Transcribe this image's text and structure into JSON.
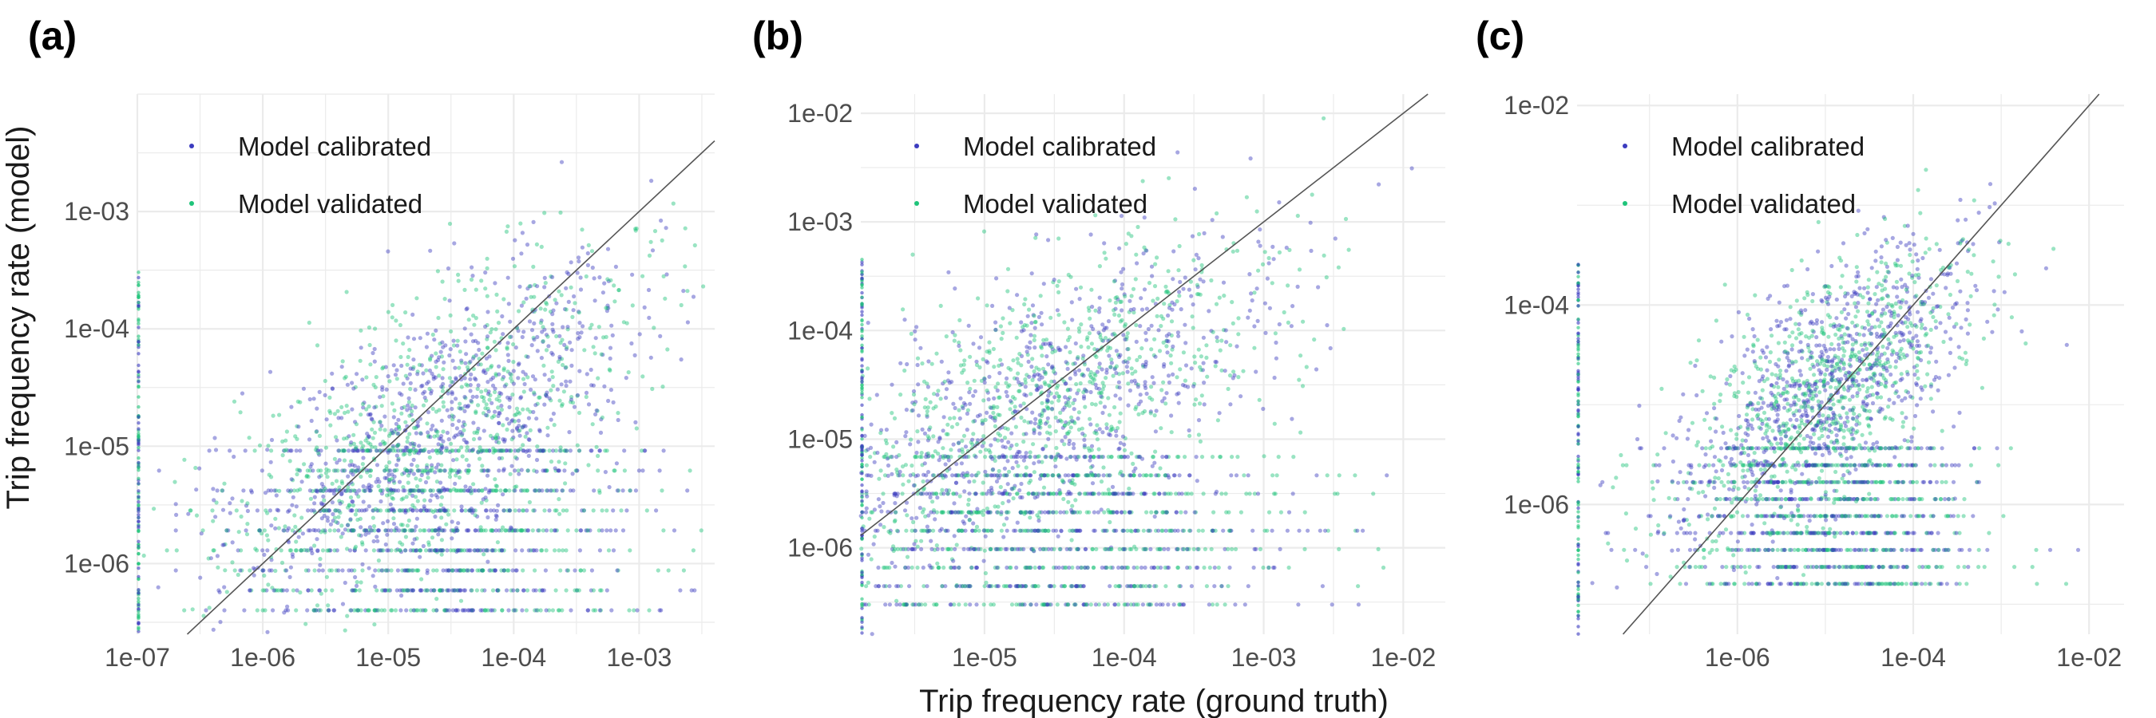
{
  "figure": {
    "ylabel": "Trip frequency rate (model)",
    "xlabel": "Trip frequency rate (ground truth)"
  },
  "colors": {
    "calibrated": "#3b3bbf",
    "validated": "#1fc47a",
    "grid": "#ebebeb",
    "identity_line": "#555555"
  },
  "chart_data": [
    {
      "type": "scatter",
      "panel_label": "(a)",
      "scale": "log-log",
      "x_range": [
        1e-07,
        0.004
      ],
      "y_range": [
        2.5e-07,
        0.01
      ],
      "x_ticks": [
        "1e-07",
        "1e-06",
        "1e-05",
        "1e-04",
        "1e-03"
      ],
      "x_tick_values": [
        1e-07,
        1e-06,
        1e-05,
        0.0001,
        0.001
      ],
      "y_ticks": [
        "1e-06",
        "1e-05",
        "1e-04",
        "1e-03"
      ],
      "y_tick_values": [
        1e-06,
        1e-05,
        0.0001,
        0.001
      ],
      "identity_line": true,
      "grid": true,
      "legend": {
        "position": "top-left",
        "entries": [
          "Model calibrated",
          "Model validated"
        ]
      },
      "series": [
        {
          "name": "Model calibrated",
          "color": "#3b3bbf"
        },
        {
          "name": "Model validated",
          "color": "#1fc47a"
        }
      ],
      "cloud": {
        "x_center": 2.5e-05,
        "y_center": 1.5e-05,
        "y_floor": 4e-07,
        "y_max": 0.005
      }
    },
    {
      "type": "scatter",
      "panel_label": "(b)",
      "scale": "log-log",
      "x_range": [
        1.3e-06,
        0.02
      ],
      "y_range": [
        1.6e-07,
        0.015
      ],
      "x_ticks": [
        "1e-05",
        "1e-04",
        "1e-03",
        "1e-02"
      ],
      "x_tick_values": [
        1e-05,
        0.0001,
        0.001,
        0.01
      ],
      "y_ticks": [
        "1e-06",
        "1e-05",
        "1e-04",
        "1e-03",
        "1e-02"
      ],
      "y_tick_values": [
        1e-06,
        1e-05,
        0.0001,
        0.001,
        0.01
      ],
      "identity_line": true,
      "grid": true,
      "legend": {
        "position": "top-left",
        "entries": [
          "Model calibrated",
          "Model validated"
        ]
      },
      "series": [
        {
          "name": "Model calibrated",
          "color": "#3b3bbf"
        },
        {
          "name": "Model validated",
          "color": "#1fc47a"
        }
      ],
      "cloud": {
        "x_center": 3e-05,
        "y_center": 2.5e-05,
        "y_floor": 3e-07,
        "y_max": 0.01
      }
    },
    {
      "type": "scatter",
      "panel_label": "(c)",
      "scale": "log-log",
      "x_range": [
        1.5e-08,
        0.025
      ],
      "y_range": [
        5e-08,
        0.013
      ],
      "x_ticks": [
        "1e-06",
        "1e-04",
        "1e-02"
      ],
      "x_tick_values": [
        1e-06,
        0.0001,
        0.01
      ],
      "y_ticks": [
        "1e-06",
        "1e-04",
        "1e-02"
      ],
      "y_tick_values": [
        1e-06,
        0.0001,
        0.01
      ],
      "identity_line": true,
      "grid": true,
      "legend": {
        "position": "top-left",
        "entries": [
          "Model calibrated",
          "Model validated"
        ]
      },
      "series": [
        {
          "name": "Model calibrated",
          "color": "#3b3bbf"
        },
        {
          "name": "Model validated",
          "color": "#1fc47a"
        }
      ],
      "cloud": {
        "x_center": 1e-05,
        "y_center": 1.5e-05,
        "y_floor": 1.6e-07,
        "y_max": 0.008
      }
    }
  ]
}
